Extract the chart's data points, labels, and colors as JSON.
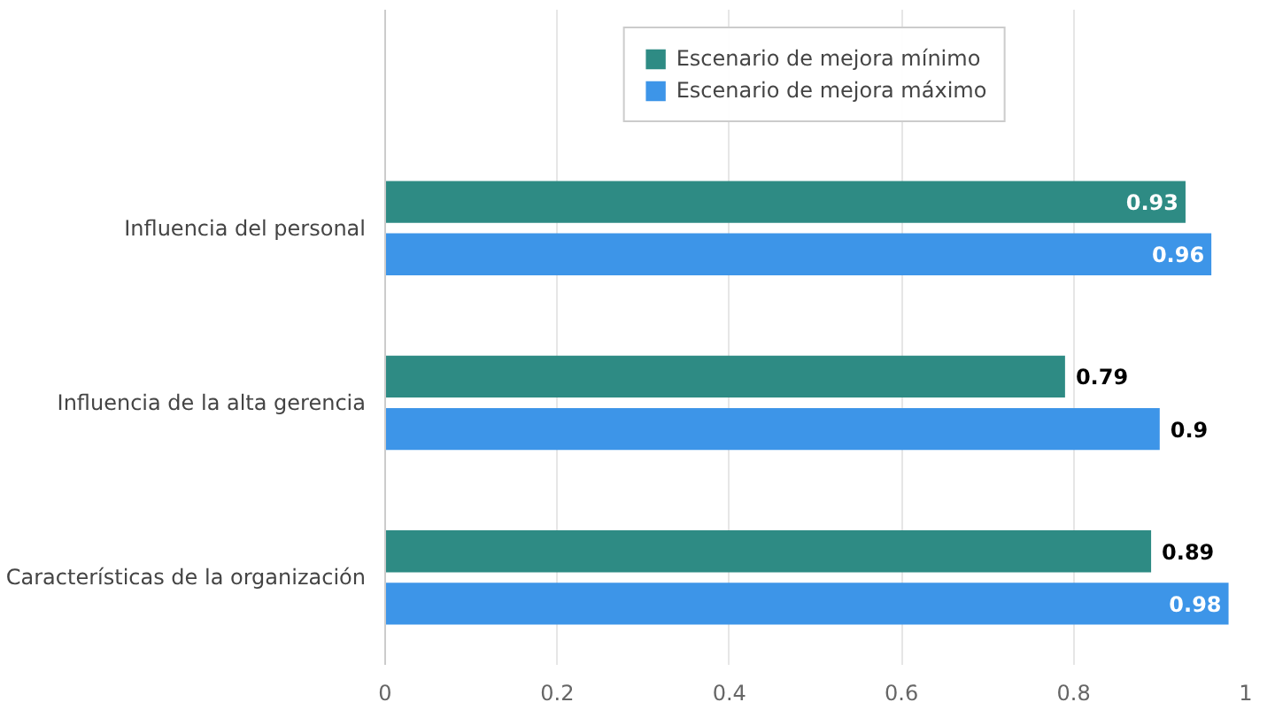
{
  "chart_data": {
    "type": "bar",
    "orientation": "horizontal",
    "categories": [
      "Influencia del personal",
      "Influencia de la alta gerencia",
      "Características de la organización"
    ],
    "series": [
      {
        "name": "Escenario de mejora mínimo",
        "color": "#2e8b84",
        "values": [
          0.93,
          0.79,
          0.89
        ]
      },
      {
        "name": "Escenario de mejora máximo",
        "color": "#3d95e8",
        "values": [
          0.96,
          0.9,
          0.98
        ]
      }
    ],
    "xlim": [
      0,
      1
    ],
    "xticks": [
      0,
      0.2,
      0.4,
      0.6,
      0.8,
      1
    ],
    "grid": "x",
    "legend": "top",
    "data_labels": true
  }
}
